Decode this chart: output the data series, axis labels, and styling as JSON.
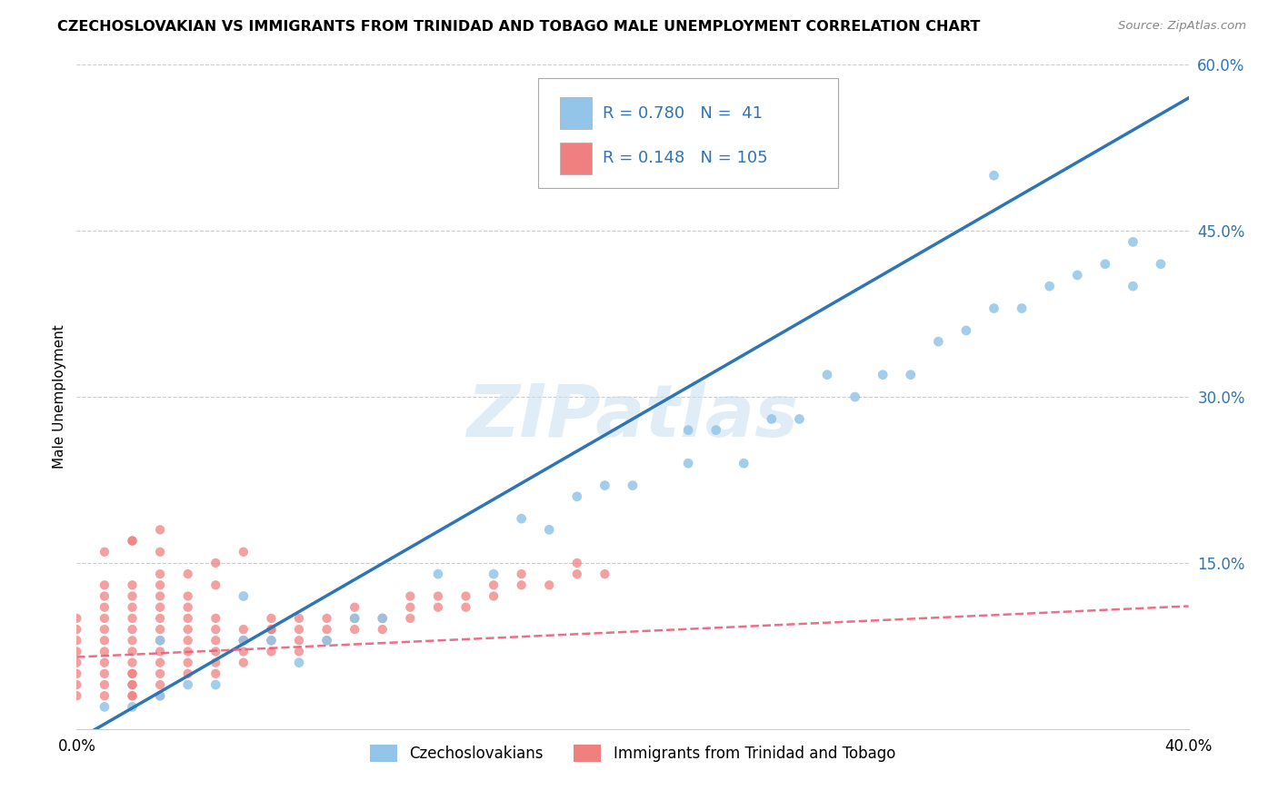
{
  "title": "CZECHOSLOVAKIAN VS IMMIGRANTS FROM TRINIDAD AND TOBAGO MALE UNEMPLOYMENT CORRELATION CHART",
  "source": "Source: ZipAtlas.com",
  "ylabel": "Male Unemployment",
  "r1": 0.78,
  "n1": 41,
  "r2": 0.148,
  "n2": 105,
  "color1": "#92C5E8",
  "color2": "#F08080",
  "line1_color": "#2E75B6",
  "line2_color": "#E8607A",
  "watermark": "ZIPatlas",
  "xlim": [
    0.0,
    0.4
  ],
  "ylim": [
    0.0,
    0.6
  ],
  "ytick_vals": [
    0.0,
    0.15,
    0.3,
    0.45,
    0.6
  ],
  "ytick_labels": [
    "",
    "15.0%",
    "30.0%",
    "45.0%",
    "60.0%"
  ],
  "legend1_label": "Czechoslovakians",
  "legend2_label": "Immigrants from Trinidad and Tobago",
  "background_color": "#ffffff",
  "grid_color": "#cccccc",
  "line1_slope": 1.45,
  "line1_intercept": -0.01,
  "line2_slope": 0.115,
  "line2_intercept": 0.065,
  "scatter1_x": [
    0.01,
    0.02,
    0.03,
    0.03,
    0.04,
    0.05,
    0.06,
    0.06,
    0.07,
    0.08,
    0.09,
    0.1,
    0.11,
    0.13,
    0.15,
    0.17,
    0.19,
    0.2,
    0.22,
    0.23,
    0.24,
    0.25,
    0.26,
    0.28,
    0.29,
    0.3,
    0.31,
    0.32,
    0.33,
    0.34,
    0.35,
    0.36,
    0.37,
    0.38,
    0.38,
    0.39,
    0.33,
    0.16,
    0.18,
    0.22,
    0.27
  ],
  "scatter1_y": [
    0.02,
    0.02,
    0.03,
    0.08,
    0.04,
    0.04,
    0.08,
    0.12,
    0.08,
    0.06,
    0.08,
    0.1,
    0.1,
    0.14,
    0.14,
    0.18,
    0.22,
    0.22,
    0.24,
    0.27,
    0.24,
    0.28,
    0.28,
    0.3,
    0.32,
    0.32,
    0.35,
    0.36,
    0.5,
    0.38,
    0.4,
    0.41,
    0.42,
    0.44,
    0.4,
    0.42,
    0.38,
    0.19,
    0.21,
    0.27,
    0.32
  ],
  "scatter2_x": [
    0.0,
    0.0,
    0.0,
    0.0,
    0.0,
    0.0,
    0.0,
    0.0,
    0.01,
    0.01,
    0.01,
    0.01,
    0.01,
    0.01,
    0.01,
    0.01,
    0.01,
    0.01,
    0.01,
    0.02,
    0.02,
    0.02,
    0.02,
    0.02,
    0.02,
    0.02,
    0.02,
    0.02,
    0.02,
    0.02,
    0.02,
    0.02,
    0.02,
    0.03,
    0.03,
    0.03,
    0.03,
    0.03,
    0.03,
    0.03,
    0.03,
    0.03,
    0.03,
    0.03,
    0.03,
    0.04,
    0.04,
    0.04,
    0.04,
    0.04,
    0.04,
    0.04,
    0.05,
    0.05,
    0.05,
    0.05,
    0.05,
    0.05,
    0.06,
    0.06,
    0.06,
    0.06,
    0.07,
    0.07,
    0.07,
    0.07,
    0.08,
    0.08,
    0.08,
    0.09,
    0.09,
    0.09,
    0.1,
    0.1,
    0.1,
    0.11,
    0.11,
    0.12,
    0.12,
    0.12,
    0.13,
    0.13,
    0.14,
    0.14,
    0.15,
    0.15,
    0.16,
    0.16,
    0.17,
    0.18,
    0.18,
    0.19,
    0.04,
    0.05,
    0.06,
    0.03,
    0.02,
    0.01,
    0.02,
    0.03,
    0.04,
    0.05,
    0.06,
    0.07,
    0.08
  ],
  "scatter2_y": [
    0.03,
    0.04,
    0.05,
    0.06,
    0.07,
    0.08,
    0.09,
    0.1,
    0.03,
    0.04,
    0.05,
    0.06,
    0.07,
    0.08,
    0.09,
    0.1,
    0.11,
    0.12,
    0.13,
    0.03,
    0.04,
    0.05,
    0.06,
    0.07,
    0.08,
    0.09,
    0.1,
    0.11,
    0.12,
    0.03,
    0.04,
    0.05,
    0.13,
    0.03,
    0.04,
    0.05,
    0.06,
    0.07,
    0.08,
    0.09,
    0.1,
    0.11,
    0.12,
    0.13,
    0.14,
    0.05,
    0.06,
    0.07,
    0.08,
    0.09,
    0.1,
    0.11,
    0.05,
    0.06,
    0.07,
    0.08,
    0.09,
    0.1,
    0.06,
    0.07,
    0.08,
    0.09,
    0.07,
    0.08,
    0.09,
    0.1,
    0.07,
    0.08,
    0.09,
    0.08,
    0.09,
    0.1,
    0.09,
    0.1,
    0.11,
    0.09,
    0.1,
    0.1,
    0.11,
    0.12,
    0.11,
    0.12,
    0.11,
    0.12,
    0.12,
    0.13,
    0.13,
    0.14,
    0.13,
    0.14,
    0.15,
    0.14,
    0.14,
    0.15,
    0.16,
    0.16,
    0.17,
    0.16,
    0.17,
    0.18,
    0.12,
    0.13,
    0.08,
    0.09,
    0.1
  ]
}
